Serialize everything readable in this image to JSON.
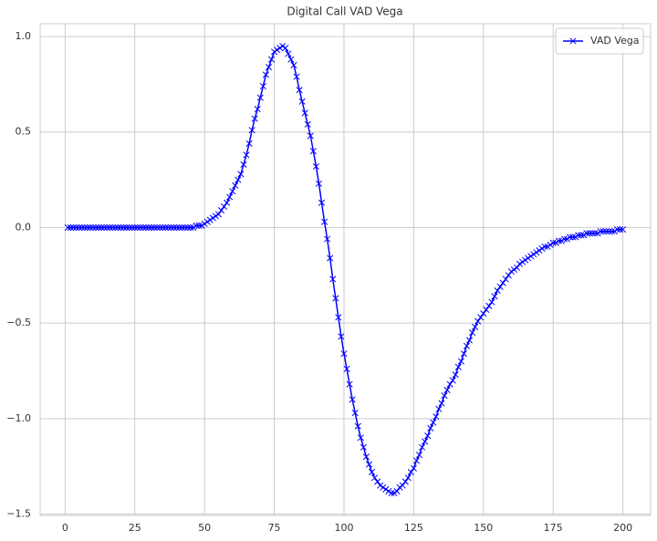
{
  "chart_data": {
    "type": "line",
    "title": "Digital Call VAD Vega",
    "x": [
      1,
      2,
      3,
      4,
      5,
      6,
      7,
      8,
      9,
      10,
      11,
      12,
      13,
      14,
      15,
      16,
      17,
      18,
      19,
      20,
      21,
      22,
      23,
      24,
      25,
      26,
      27,
      28,
      29,
      30,
      31,
      32,
      33,
      34,
      35,
      36,
      37,
      38,
      39,
      40,
      41,
      42,
      43,
      44,
      45,
      46,
      47,
      48,
      49,
      50,
      51,
      52,
      53,
      54,
      55,
      56,
      57,
      58,
      59,
      60,
      61,
      62,
      63,
      64,
      65,
      66,
      67,
      68,
      69,
      70,
      71,
      72,
      73,
      74,
      75,
      76,
      77,
      78,
      79,
      80,
      81,
      82,
      83,
      84,
      85,
      86,
      87,
      88,
      89,
      90,
      91,
      92,
      93,
      94,
      95,
      96,
      97,
      98,
      99,
      100,
      101,
      102,
      103,
      104,
      105,
      106,
      107,
      108,
      109,
      110,
      111,
      112,
      113,
      114,
      115,
      116,
      117,
      118,
      119,
      120,
      121,
      122,
      123,
      124,
      125,
      126,
      127,
      128,
      129,
      130,
      131,
      132,
      133,
      134,
      135,
      136,
      137,
      138,
      139,
      140,
      141,
      142,
      143,
      144,
      145,
      146,
      147,
      148,
      149,
      150,
      151,
      152,
      153,
      154,
      155,
      156,
      157,
      158,
      159,
      160,
      161,
      162,
      163,
      164,
      165,
      166,
      167,
      168,
      169,
      170,
      171,
      172,
      173,
      174,
      175,
      176,
      177,
      178,
      179,
      180,
      181,
      182,
      183,
      184,
      185,
      186,
      187,
      188,
      189,
      190,
      191,
      192,
      193,
      194,
      195,
      196,
      197,
      198,
      199,
      200
    ],
    "series": [
      {
        "name": "VAD Vega",
        "color": "#0000ff",
        "marker": "x",
        "values": [
          0,
          0,
          0,
          0,
          0,
          0,
          0,
          0,
          0,
          0,
          0,
          0,
          0,
          0,
          0,
          0,
          0,
          0,
          0,
          0,
          0,
          0,
          0,
          0,
          0,
          0,
          0,
          0,
          0,
          0,
          0,
          0,
          0,
          0,
          0,
          0,
          0,
          0,
          0,
          0,
          0,
          0,
          0,
          0,
          0,
          0,
          0.01,
          0.01,
          0.01,
          0.02,
          0.03,
          0.04,
          0.05,
          0.06,
          0.07,
          0.09,
          0.11,
          0.13,
          0.16,
          0.19,
          0.22,
          0.25,
          0.28,
          0.33,
          0.38,
          0.44,
          0.51,
          0.57,
          0.62,
          0.68,
          0.74,
          0.8,
          0.84,
          0.88,
          0.92,
          0.93,
          0.94,
          0.95,
          0.94,
          0.91,
          0.88,
          0.85,
          0.79,
          0.72,
          0.66,
          0.6,
          0.54,
          0.48,
          0.4,
          0.32,
          0.23,
          0.13,
          0.03,
          -0.06,
          -0.16,
          -0.27,
          -0.37,
          -0.47,
          -0.57,
          -0.66,
          -0.74,
          -0.82,
          -0.9,
          -0.97,
          -1.04,
          -1.1,
          -1.15,
          -1.2,
          -1.24,
          -1.28,
          -1.31,
          -1.33,
          -1.35,
          -1.36,
          -1.37,
          -1.38,
          -1.39,
          -1.39,
          -1.38,
          -1.36,
          -1.35,
          -1.33,
          -1.31,
          -1.28,
          -1.26,
          -1.22,
          -1.19,
          -1.15,
          -1.12,
          -1.09,
          -1.05,
          -1.02,
          -0.99,
          -0.95,
          -0.92,
          -0.88,
          -0.85,
          -0.82,
          -0.8,
          -0.77,
          -0.73,
          -0.7,
          -0.66,
          -0.62,
          -0.59,
          -0.55,
          -0.52,
          -0.49,
          -0.47,
          -0.45,
          -0.43,
          -0.41,
          -0.39,
          -0.36,
          -0.33,
          -0.31,
          -0.29,
          -0.27,
          -0.25,
          -0.23,
          -0.22,
          -0.21,
          -0.19,
          -0.18,
          -0.17,
          -0.16,
          -0.15,
          -0.14,
          -0.13,
          -0.12,
          -0.11,
          -0.1,
          -0.1,
          -0.09,
          -0.08,
          -0.08,
          -0.07,
          -0.07,
          -0.06,
          -0.06,
          -0.05,
          -0.05,
          -0.05,
          -0.04,
          -0.04,
          -0.04,
          -0.03,
          -0.03,
          -0.03,
          -0.03,
          -0.03,
          -0.02,
          -0.02,
          -0.02,
          -0.02,
          -0.02,
          -0.02,
          -0.01,
          -0.01,
          -0.01
        ]
      }
    ],
    "xlim": [
      -8.95,
      209.95
    ],
    "ylim": [
      -1.507,
      1.067
    ],
    "xticks": [
      0,
      25,
      50,
      75,
      100,
      125,
      150,
      175,
      200
    ],
    "yticks": [
      {
        "value": -1.5,
        "label": "−1.5"
      },
      {
        "value": -1.0,
        "label": "−1.0"
      },
      {
        "value": -0.5,
        "label": "−0.5"
      },
      {
        "value": 0,
        "label": "0.0"
      },
      {
        "value": 0.5,
        "label": "0.5"
      },
      {
        "value": 1.0,
        "label": "1.0"
      }
    ],
    "grid": true,
    "legend": "upper right"
  }
}
